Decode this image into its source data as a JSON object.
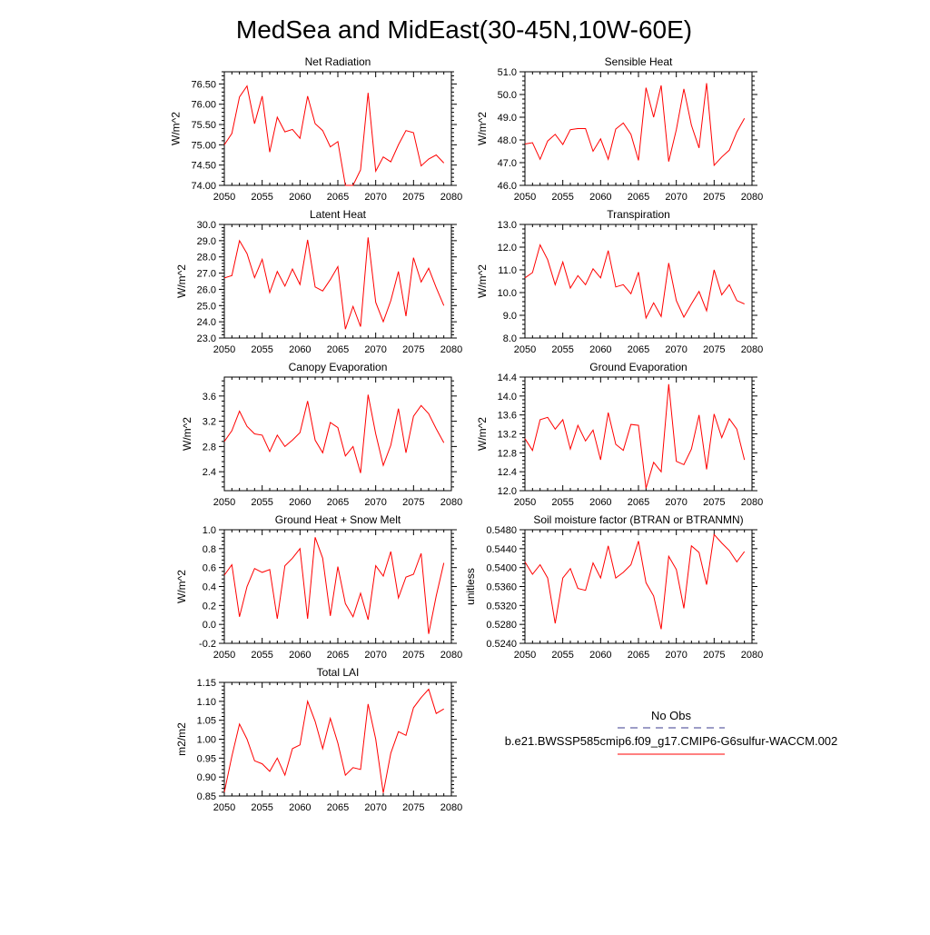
{
  "page_title": "MedSea and MidEast(30-45N,10W-60E)",
  "colors": {
    "model_line": "#ff0000",
    "obs_line": "#3b3b8f",
    "axis": "#000000"
  },
  "legend": {
    "obs_label": "No Obs",
    "model_label": "b.e21.BWSSP585cmip6.f09_g17.CMIP6-G6sulfur-WACCM.002"
  },
  "chart_data": [
    {
      "type": "line",
      "title": "Net Radiation",
      "xlabel": "",
      "ylabel": "W/m^2",
      "xlim": [
        2050,
        2080
      ],
      "ylim": [
        74.0,
        76.8
      ],
      "xticks": [
        2050,
        2055,
        2060,
        2065,
        2070,
        2075,
        2080
      ],
      "xtick_labels": [
        "2050",
        "2055",
        "2060",
        "2065",
        "2070",
        "2075",
        "2080"
      ],
      "yticks": [
        74.0,
        74.5,
        75.0,
        75.5,
        76.0,
        76.5
      ],
      "ytick_labels": [
        "74.00",
        "74.50",
        "75.00",
        "75.50",
        "76.00",
        "76.50"
      ],
      "x": [
        2050,
        2051,
        2052,
        2053,
        2054,
        2055,
        2056,
        2057,
        2058,
        2059,
        2060,
        2061,
        2062,
        2063,
        2064,
        2065,
        2066,
        2067,
        2068,
        2069,
        2070,
        2071,
        2072,
        2073,
        2074,
        2075,
        2076,
        2077,
        2078,
        2079
      ],
      "series": [
        {
          "values": [
            75.0,
            75.28,
            76.18,
            76.45,
            75.52,
            76.2,
            74.82,
            75.68,
            75.32,
            75.38,
            75.16,
            76.2,
            75.52,
            75.35,
            74.95,
            75.08,
            74.0,
            74.0,
            74.38,
            76.28,
            74.35,
            74.7,
            74.58,
            75.0,
            75.35,
            75.3,
            74.48,
            74.65,
            74.75,
            74.55
          ]
        }
      ]
    },
    {
      "type": "line",
      "title": "Sensible Heat",
      "xlabel": "",
      "ylabel": "W/m^2",
      "xlim": [
        2050,
        2080
      ],
      "ylim": [
        46.0,
        51.0
      ],
      "xticks": [
        2050,
        2055,
        2060,
        2065,
        2070,
        2075,
        2080
      ],
      "xtick_labels": [
        "2050",
        "2055",
        "2060",
        "2065",
        "2070",
        "2075",
        "2080"
      ],
      "yticks": [
        46.0,
        47.0,
        48.0,
        49.0,
        50.0,
        51.0
      ],
      "ytick_labels": [
        "46.0",
        "47.0",
        "48.0",
        "49.0",
        "50.0",
        "51.0"
      ],
      "x": [
        2050,
        2051,
        2052,
        2053,
        2054,
        2055,
        2056,
        2057,
        2058,
        2059,
        2060,
        2061,
        2062,
        2063,
        2064,
        2065,
        2066,
        2067,
        2068,
        2069,
        2070,
        2071,
        2072,
        2073,
        2074,
        2075,
        2076,
        2077,
        2078,
        2079
      ],
      "series": [
        {
          "values": [
            47.82,
            47.88,
            47.15,
            47.95,
            48.25,
            47.8,
            48.45,
            48.5,
            48.5,
            47.5,
            48.05,
            47.15,
            48.48,
            48.75,
            48.25,
            47.1,
            50.3,
            49.0,
            50.4,
            47.05,
            48.45,
            50.25,
            48.65,
            47.65,
            50.5,
            46.88,
            47.25,
            47.55,
            48.35,
            48.95
          ]
        }
      ]
    },
    {
      "type": "line",
      "title": "Latent Heat",
      "xlabel": "",
      "ylabel": "W/m^2",
      "xlim": [
        2050,
        2080
      ],
      "ylim": [
        23.0,
        30.0
      ],
      "xticks": [
        2050,
        2055,
        2060,
        2065,
        2070,
        2075,
        2080
      ],
      "xtick_labels": [
        "2050",
        "2055",
        "2060",
        "2065",
        "2070",
        "2075",
        "2080"
      ],
      "yticks": [
        23.0,
        24.0,
        25.0,
        26.0,
        27.0,
        28.0,
        29.0,
        30.0
      ],
      "ytick_labels": [
        "23.0",
        "24.0",
        "25.0",
        "26.0",
        "27.0",
        "28.0",
        "29.0",
        "30.0"
      ],
      "x": [
        2050,
        2051,
        2052,
        2053,
        2054,
        2055,
        2056,
        2057,
        2058,
        2059,
        2060,
        2061,
        2062,
        2063,
        2064,
        2065,
        2066,
        2067,
        2068,
        2069,
        2070,
        2071,
        2072,
        2073,
        2074,
        2075,
        2076,
        2077,
        2078,
        2079
      ],
      "series": [
        {
          "values": [
            26.7,
            26.85,
            29.0,
            28.2,
            26.72,
            27.85,
            25.8,
            27.1,
            26.2,
            27.25,
            26.3,
            29.05,
            26.15,
            25.9,
            26.6,
            27.4,
            23.55,
            24.95,
            23.7,
            29.2,
            25.2,
            24.0,
            25.3,
            27.1,
            24.35,
            27.95,
            26.45,
            27.3,
            26.1,
            25.0
          ]
        }
      ]
    },
    {
      "type": "line",
      "title": "Transpiration",
      "xlabel": "",
      "ylabel": "W/m^2",
      "xlim": [
        2050,
        2080
      ],
      "ylim": [
        8.0,
        13.0
      ],
      "xticks": [
        2050,
        2055,
        2060,
        2065,
        2070,
        2075,
        2080
      ],
      "xtick_labels": [
        "2050",
        "2055",
        "2060",
        "2065",
        "2070",
        "2075",
        "2080"
      ],
      "yticks": [
        8.0,
        9.0,
        10.0,
        11.0,
        12.0,
        13.0
      ],
      "ytick_labels": [
        "8.0",
        "9.0",
        "10.0",
        "11.0",
        "12.0",
        "13.0"
      ],
      "x": [
        2050,
        2051,
        2052,
        2053,
        2054,
        2055,
        2056,
        2057,
        2058,
        2059,
        2060,
        2061,
        2062,
        2063,
        2064,
        2065,
        2066,
        2067,
        2068,
        2069,
        2070,
        2071,
        2072,
        2073,
        2074,
        2075,
        2076,
        2077,
        2078,
        2079
      ],
      "series": [
        {
          "values": [
            10.65,
            10.88,
            12.1,
            11.45,
            10.35,
            11.35,
            10.2,
            10.75,
            10.35,
            11.05,
            10.65,
            11.85,
            10.25,
            10.35,
            9.95,
            10.9,
            8.88,
            9.55,
            8.95,
            11.3,
            9.65,
            8.92,
            9.5,
            10.05,
            9.2,
            11.0,
            9.9,
            10.35,
            9.65,
            9.5
          ]
        }
      ]
    },
    {
      "type": "line",
      "title": "Canopy Evaporation",
      "xlabel": "",
      "ylabel": "W/m^2",
      "xlim": [
        2050,
        2080
      ],
      "ylim": [
        2.1,
        3.9
      ],
      "xticks": [
        2050,
        2055,
        2060,
        2065,
        2070,
        2075,
        2080
      ],
      "xtick_labels": [
        "2050",
        "2055",
        "2060",
        "2065",
        "2070",
        "2075",
        "2080"
      ],
      "yticks": [
        2.4,
        2.8,
        3.2,
        3.6
      ],
      "ytick_labels": [
        "2.4",
        "2.8",
        "3.2",
        "3.6"
      ],
      "x": [
        2050,
        2051,
        2052,
        2053,
        2054,
        2055,
        2056,
        2057,
        2058,
        2059,
        2060,
        2061,
        2062,
        2063,
        2064,
        2065,
        2066,
        2067,
        2068,
        2069,
        2070,
        2071,
        2072,
        2073,
        2074,
        2075,
        2076,
        2077,
        2078,
        2079
      ],
      "series": [
        {
          "values": [
            2.88,
            3.05,
            3.36,
            3.12,
            3.0,
            2.98,
            2.72,
            2.98,
            2.8,
            2.9,
            3.02,
            3.52,
            2.9,
            2.7,
            3.18,
            3.1,
            2.65,
            2.8,
            2.38,
            3.62,
            3.0,
            2.5,
            2.82,
            3.4,
            2.7,
            3.28,
            3.45,
            3.32,
            3.08,
            2.86
          ]
        }
      ]
    },
    {
      "type": "line",
      "title": "Ground Evaporation",
      "xlabel": "",
      "ylabel": "W/m^2",
      "xlim": [
        2050,
        2080
      ],
      "ylim": [
        12.0,
        14.4
      ],
      "xticks": [
        2050,
        2055,
        2060,
        2065,
        2070,
        2075,
        2080
      ],
      "xtick_labels": [
        "2050",
        "2055",
        "2060",
        "2065",
        "2070",
        "2075",
        "2080"
      ],
      "yticks": [
        12.0,
        12.4,
        12.8,
        13.2,
        13.6,
        14.0,
        14.4
      ],
      "ytick_labels": [
        "12.0",
        "12.4",
        "12.8",
        "13.2",
        "13.6",
        "14.0",
        "14.4"
      ],
      "x": [
        2050,
        2051,
        2052,
        2053,
        2054,
        2055,
        2056,
        2057,
        2058,
        2059,
        2060,
        2061,
        2062,
        2063,
        2064,
        2065,
        2066,
        2067,
        2068,
        2069,
        2070,
        2071,
        2072,
        2073,
        2074,
        2075,
        2076,
        2077,
        2078,
        2079
      ],
      "series": [
        {
          "values": [
            13.1,
            12.85,
            13.5,
            13.55,
            13.3,
            13.5,
            12.88,
            13.38,
            13.05,
            13.28,
            12.65,
            13.65,
            12.98,
            12.85,
            13.4,
            13.38,
            12.05,
            12.6,
            12.4,
            14.25,
            12.62,
            12.55,
            12.88,
            13.6,
            12.45,
            13.62,
            13.12,
            13.52,
            13.3,
            12.65
          ]
        }
      ]
    },
    {
      "type": "line",
      "title": "Ground Heat + Snow Melt",
      "xlabel": "",
      "ylabel": "W/m^2",
      "xlim": [
        2050,
        2080
      ],
      "ylim": [
        -0.2,
        1.0
      ],
      "xticks": [
        2050,
        2055,
        2060,
        2065,
        2070,
        2075,
        2080
      ],
      "xtick_labels": [
        "2050",
        "2055",
        "2060",
        "2065",
        "2070",
        "2075",
        "2080"
      ],
      "yticks": [
        -0.2,
        0.0,
        0.2,
        0.4,
        0.6,
        0.8,
        1.0
      ],
      "ytick_labels": [
        "-0.2",
        "0.0",
        "0.2",
        "0.4",
        "0.6",
        "0.8",
        "1.0"
      ],
      "x": [
        2050,
        2051,
        2052,
        2053,
        2054,
        2055,
        2056,
        2057,
        2058,
        2059,
        2060,
        2061,
        2062,
        2063,
        2064,
        2065,
        2066,
        2067,
        2068,
        2069,
        2070,
        2071,
        2072,
        2073,
        2074,
        2075,
        2076,
        2077,
        2078,
        2079
      ],
      "series": [
        {
          "values": [
            0.52,
            0.63,
            0.08,
            0.4,
            0.59,
            0.55,
            0.58,
            0.06,
            0.62,
            0.7,
            0.8,
            0.06,
            0.92,
            0.7,
            0.09,
            0.61,
            0.22,
            0.08,
            0.33,
            0.05,
            0.62,
            0.51,
            0.77,
            0.28,
            0.5,
            0.53,
            0.75,
            -0.1,
            0.3,
            0.65
          ]
        }
      ]
    },
    {
      "type": "line",
      "title": "Soil moisture factor (BTRAN or BTRANMN)",
      "xlabel": "",
      "ylabel": "unitless",
      "xlim": [
        2050,
        2080
      ],
      "ylim": [
        0.524,
        0.548
      ],
      "xticks": [
        2050,
        2055,
        2060,
        2065,
        2070,
        2075,
        2080
      ],
      "xtick_labels": [
        "2050",
        "2055",
        "2060",
        "2065",
        "2070",
        "2075",
        "2080"
      ],
      "yticks": [
        0.524,
        0.528,
        0.532,
        0.536,
        0.54,
        0.544,
        0.548
      ],
      "ytick_labels": [
        "0.5240",
        "0.5280",
        "0.5320",
        "0.5360",
        "0.5400",
        "0.5440",
        "0.5480"
      ],
      "x": [
        2050,
        2051,
        2052,
        2053,
        2054,
        2055,
        2056,
        2057,
        2058,
        2059,
        2060,
        2061,
        2062,
        2063,
        2064,
        2065,
        2066,
        2067,
        2068,
        2069,
        2070,
        2071,
        2072,
        2073,
        2074,
        2075,
        2076,
        2077,
        2078,
        2079
      ],
      "series": [
        {
          "values": [
            0.5412,
            0.5386,
            0.5406,
            0.5378,
            0.5282,
            0.5378,
            0.5398,
            0.5356,
            0.5352,
            0.541,
            0.5378,
            0.5446,
            0.5378,
            0.539,
            0.5406,
            0.5456,
            0.5368,
            0.534,
            0.527,
            0.5424,
            0.5396,
            0.5314,
            0.5446,
            0.5432,
            0.5364,
            0.547,
            0.5452,
            0.5436,
            0.5412,
            0.5434
          ]
        }
      ]
    },
    {
      "type": "line",
      "title": "Total LAI",
      "xlabel": "",
      "ylabel": "m2/m2",
      "xlim": [
        2050,
        2080
      ],
      "ylim": [
        0.85,
        1.15
      ],
      "xticks": [
        2050,
        2055,
        2060,
        2065,
        2070,
        2075,
        2080
      ],
      "xtick_labels": [
        "2050",
        "2055",
        "2060",
        "2065",
        "2070",
        "2075",
        "2080"
      ],
      "yticks": [
        0.85,
        0.9,
        0.95,
        1.0,
        1.05,
        1.1,
        1.15
      ],
      "ytick_labels": [
        "0.85",
        "0.90",
        "0.95",
        "1.00",
        "1.05",
        "1.10",
        "1.15"
      ],
      "x": [
        2050,
        2051,
        2052,
        2053,
        2054,
        2055,
        2056,
        2057,
        2058,
        2059,
        2060,
        2061,
        2062,
        2063,
        2064,
        2065,
        2066,
        2067,
        2068,
        2069,
        2070,
        2071,
        2072,
        2073,
        2074,
        2075,
        2076,
        2077,
        2078,
        2079
      ],
      "series": [
        {
          "values": [
            0.86,
            0.955,
            1.04,
            1.0,
            0.943,
            0.935,
            0.915,
            0.95,
            0.905,
            0.975,
            0.985,
            1.1,
            1.047,
            0.975,
            1.055,
            0.99,
            0.905,
            0.925,
            0.92,
            1.093,
            1.0,
            0.858,
            0.963,
            1.02,
            1.01,
            1.083,
            1.11,
            1.132,
            1.068,
            1.08
          ]
        }
      ]
    }
  ]
}
